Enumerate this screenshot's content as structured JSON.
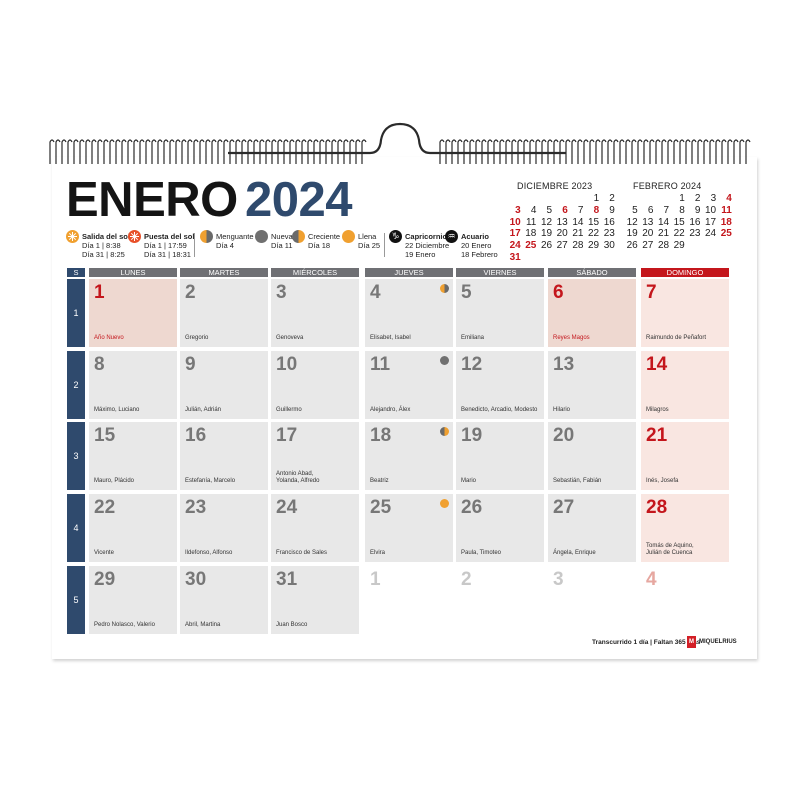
{
  "colors": {
    "accent_blue": "#2f4a6d",
    "holiday_red": "#c4161c",
    "header_gray": "#6f7074",
    "sun": "#f0a030",
    "moon_dark": "#707070"
  },
  "header": {
    "month": "ENERO",
    "year": "2024"
  },
  "legend": {
    "sunrise": {
      "label": "Salida del sol",
      "line1": "Día 1 | 8:38",
      "line2": "Día 31 | 8:25",
      "icon": "sunrise-icon"
    },
    "sunset": {
      "label": "Puesta del sol",
      "line1": "Día 1 | 17:59",
      "line2": "Día 31 | 18:31",
      "icon": "sunset-icon"
    },
    "waning": {
      "label": "Menguante",
      "line1": "Día 4",
      "icon": "waning-moon-icon"
    },
    "new": {
      "label": "Nueva",
      "line1": "Día 11",
      "icon": "new-moon-icon"
    },
    "waxing": {
      "label": "Creciente",
      "line1": "Día 18",
      "icon": "waxing-moon-icon"
    },
    "full": {
      "label": "Llena",
      "line1": "Día 25",
      "icon": "full-moon-icon"
    },
    "capricorn": {
      "label": "Capricornio",
      "line1": "22 Diciembre",
      "line2": "19 Enero",
      "icon": "capricorn-icon"
    },
    "aquarius": {
      "label": "Acuario",
      "line1": "20 Enero",
      "line2": "18 Febrero",
      "icon": "aquarius-icon"
    }
  },
  "mini_calendars": [
    {
      "title": "DICIEMBRE 2023",
      "start_col": 5,
      "days": 31,
      "red": [
        3,
        6,
        8,
        10,
        17,
        24,
        25,
        31
      ]
    },
    {
      "title": "FEBRERO 2024",
      "start_col": 3,
      "days": 29,
      "red": [
        4,
        11,
        18,
        25
      ]
    }
  ],
  "grid": {
    "week_label": "S",
    "weekdays": [
      "LUNES",
      "MARTES",
      "MIÉRCOLES",
      "JUEVES",
      "VIERNES",
      "SÁBADO",
      "DOMINGO"
    ],
    "weeks": [
      "1",
      "2",
      "3",
      "4",
      "5"
    ],
    "days": [
      {
        "n": "1",
        "saint": "Año Nuevo",
        "holiday": true
      },
      {
        "n": "2",
        "saint": "Gregorio"
      },
      {
        "n": "3",
        "saint": "Genoveva"
      },
      {
        "n": "4",
        "saint": "Elisabet, Isabel",
        "moon": "waning"
      },
      {
        "n": "5",
        "saint": "Emiliana"
      },
      {
        "n": "6",
        "saint": "Reyes Magos",
        "holiday": true
      },
      {
        "n": "7",
        "saint": "Raimundo de Peñafort"
      },
      {
        "n": "8",
        "saint": "Máximo, Luciano"
      },
      {
        "n": "9",
        "saint": "Julián, Adrián"
      },
      {
        "n": "10",
        "saint": "Guillermo"
      },
      {
        "n": "11",
        "saint": "Alejandro, Álex",
        "moon": "new"
      },
      {
        "n": "12",
        "saint": "Benedicto, Arcadio, Modesto"
      },
      {
        "n": "13",
        "saint": "Hilario"
      },
      {
        "n": "14",
        "saint": "Milagros"
      },
      {
        "n": "15",
        "saint": "Mauro, Plácido"
      },
      {
        "n": "16",
        "saint": "Estefanía, Marcelo"
      },
      {
        "n": "17",
        "saint": "Antonio Abad,\nYolanda, Alfredo"
      },
      {
        "n": "18",
        "saint": "Beatriz",
        "moon": "waxing"
      },
      {
        "n": "19",
        "saint": "Mario"
      },
      {
        "n": "20",
        "saint": "Sebastián, Fabián"
      },
      {
        "n": "21",
        "saint": "Inés, Josefa"
      },
      {
        "n": "22",
        "saint": "Vicente"
      },
      {
        "n": "23",
        "saint": "Ildefonso, Alfonso"
      },
      {
        "n": "24",
        "saint": "Francisco de Sales"
      },
      {
        "n": "25",
        "saint": "Elvira",
        "moon": "full"
      },
      {
        "n": "26",
        "saint": "Paula, Timoteo"
      },
      {
        "n": "27",
        "saint": "Ángela, Enrique"
      },
      {
        "n": "28",
        "saint": "Tomás de Aquino,\nJulián de Cuenca"
      },
      {
        "n": "29",
        "saint": "Pedro Nolasco, Valerio"
      },
      {
        "n": "30",
        "saint": "Abril, Martina"
      },
      {
        "n": "31",
        "saint": "Juan Bosco"
      },
      {
        "n": "1",
        "next": true
      },
      {
        "n": "2",
        "next": true
      },
      {
        "n": "3",
        "next": true
      },
      {
        "n": "4",
        "next": true
      }
    ]
  },
  "footer": {
    "count": "Transcurrido 1 día | Faltan 365 días",
    "brand_mark": "M",
    "brand_name": "MIQUELRIUS"
  }
}
